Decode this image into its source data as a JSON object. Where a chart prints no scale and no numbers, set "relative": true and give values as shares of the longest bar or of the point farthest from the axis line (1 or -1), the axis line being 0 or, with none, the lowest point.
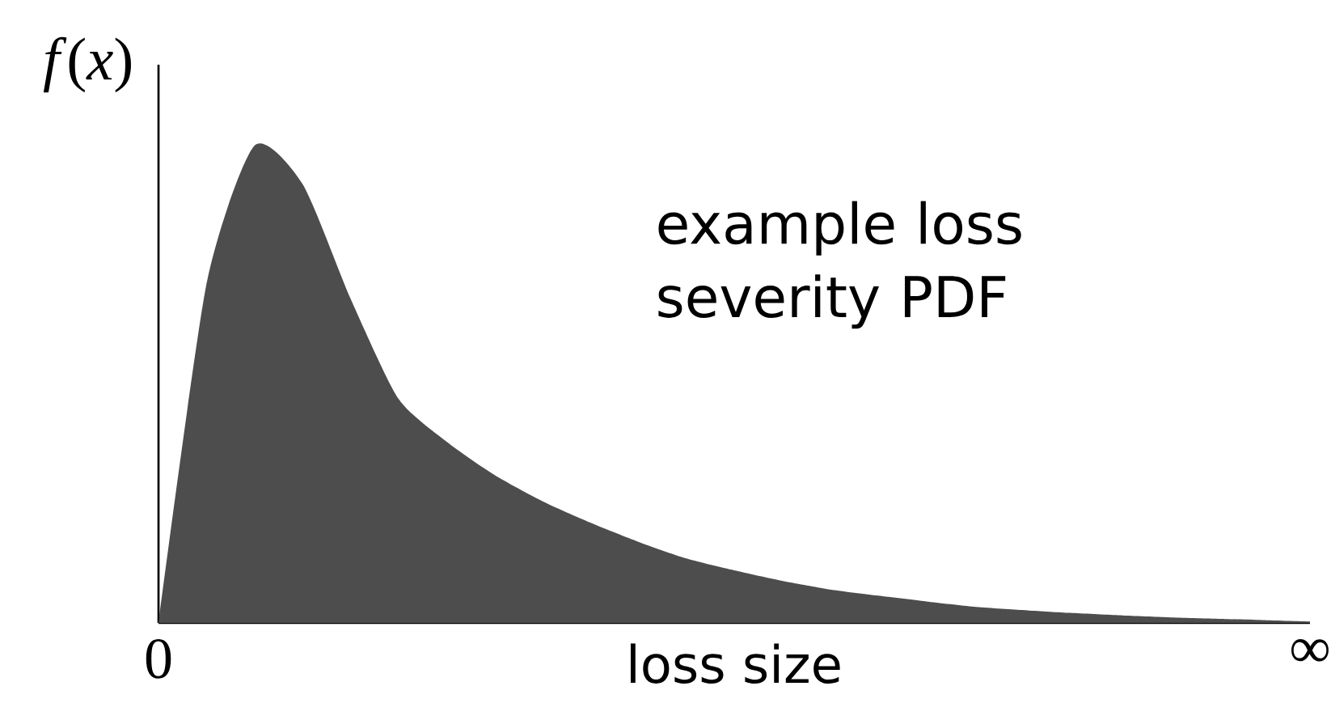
{
  "chart_data": {
    "type": "area",
    "relative": true,
    "ylabel": "*f*(*x*)",
    "xlabel": "loss size",
    "annotations": [
      "example loss severity PDF"
    ],
    "color": "#4d4d4d",
    "categories": [
      "0",
      null,
      null,
      null,
      null,
      null,
      null,
      null,
      null,
      null,
      null,
      null,
      null,
      null,
      null,
      null,
      null,
      null,
      null,
      null,
      null,
      null,
      null,
      null,
      "∞"
    ],
    "values": [
      0,
      0.71,
      1.0,
      0.92,
      0.68,
      0.47,
      0.38,
      0.31,
      0.255,
      0.21,
      0.17,
      0.135,
      0.11,
      0.088,
      0.07,
      0.057,
      0.045,
      0.034,
      0.027,
      0.021,
      0.016,
      0.012,
      0.009,
      0.006,
      0.003
    ]
  }
}
